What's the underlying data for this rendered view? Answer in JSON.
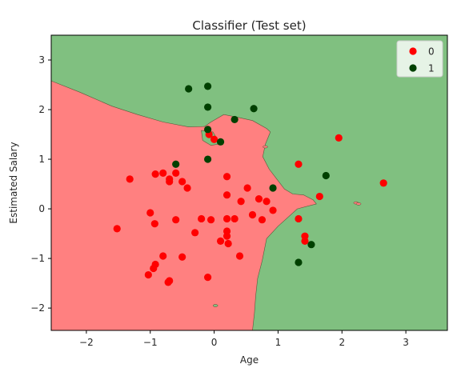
{
  "chart_data": {
    "type": "scatter",
    "title": "Classifier (Test set)",
    "xlabel": "Age",
    "ylabel": "Estimated Salary",
    "xlim": [
      -2.55,
      3.65
    ],
    "ylim": [
      -2.45,
      3.5
    ],
    "xticks": [
      -2,
      -1,
      0,
      1,
      2,
      3
    ],
    "yticks": [
      -2,
      -1,
      0,
      1,
      2,
      3
    ],
    "grid": false,
    "legend_position": "top-right",
    "regions": [
      {
        "class": "0",
        "color": "#ff8080"
      },
      {
        "class": "1",
        "color": "#80c080"
      }
    ],
    "boundary": [
      [
        -2.55,
        2.58
      ],
      [
        -2.1,
        2.35
      ],
      [
        -1.6,
        2.07
      ],
      [
        -1.2,
        1.9
      ],
      [
        -0.8,
        1.75
      ],
      [
        -0.4,
        1.65
      ],
      [
        -0.15,
        1.66
      ],
      [
        -0.05,
        1.75
      ],
      [
        0.15,
        1.9
      ],
      [
        0.35,
        1.85
      ],
      [
        0.6,
        1.78
      ],
      [
        0.82,
        1.62
      ],
      [
        0.88,
        1.55
      ],
      [
        0.8,
        1.3
      ],
      [
        0.76,
        1.05
      ],
      [
        0.86,
        0.8
      ],
      [
        0.98,
        0.6
      ],
      [
        1.1,
        0.4
      ],
      [
        1.23,
        0.3
      ],
      [
        1.4,
        0.28
      ],
      [
        1.55,
        0.18
      ],
      [
        1.6,
        0.1
      ],
      [
        1.3,
        0.0
      ],
      [
        1.0,
        -0.35
      ],
      [
        0.82,
        -0.6
      ],
      [
        0.75,
        -1.05
      ],
      [
        0.68,
        -1.4
      ],
      [
        0.65,
        -1.75
      ],
      [
        0.63,
        -2.1
      ],
      [
        0.6,
        -2.45
      ]
    ],
    "notch": [
      [
        -0.2,
        1.58
      ],
      [
        -0.02,
        1.55
      ],
      [
        0.05,
        1.4
      ],
      [
        0.05,
        1.3
      ],
      [
        -0.05,
        1.28
      ],
      [
        -0.18,
        1.38
      ]
    ],
    "series": [
      {
        "name": "0",
        "color": "#ff0000",
        "points": [
          [
            -1.52,
            -0.4
          ],
          [
            -1.32,
            0.6
          ],
          [
            -1.03,
            -1.33
          ],
          [
            -1.0,
            -0.08
          ],
          [
            -0.95,
            -1.2
          ],
          [
            -0.92,
            -1.12
          ],
          [
            -0.93,
            -0.3
          ],
          [
            -0.92,
            0.7
          ],
          [
            -0.8,
            0.72
          ],
          [
            -0.8,
            -0.95
          ],
          [
            -0.72,
            -1.48
          ],
          [
            -0.7,
            -1.45
          ],
          [
            -0.7,
            0.55
          ],
          [
            -0.7,
            0.6
          ],
          [
            -0.6,
            0.72
          ],
          [
            -0.6,
            -0.22
          ],
          [
            -0.5,
            -0.97
          ],
          [
            -0.5,
            0.55
          ],
          [
            -0.42,
            0.42
          ],
          [
            -0.3,
            -0.48
          ],
          [
            -0.2,
            -0.2
          ],
          [
            -0.1,
            -1.38
          ],
          [
            -0.08,
            1.5
          ],
          [
            -0.05,
            -0.22
          ],
          [
            0.0,
            1.4
          ],
          [
            0.1,
            -0.65
          ],
          [
            0.2,
            0.65
          ],
          [
            0.2,
            -0.2
          ],
          [
            0.2,
            0.28
          ],
          [
            0.2,
            -0.45
          ],
          [
            0.2,
            -0.55
          ],
          [
            0.22,
            -0.7
          ],
          [
            0.32,
            -0.2
          ],
          [
            0.4,
            -0.95
          ],
          [
            0.42,
            0.15
          ],
          [
            0.52,
            0.42
          ],
          [
            0.6,
            -0.12
          ],
          [
            0.7,
            0.2
          ],
          [
            0.75,
            -0.22
          ],
          [
            0.82,
            0.15
          ],
          [
            0.92,
            -0.03
          ],
          [
            1.32,
            0.9
          ],
          [
            1.32,
            -0.2
          ],
          [
            1.42,
            -0.55
          ],
          [
            1.42,
            -0.65
          ],
          [
            1.65,
            0.25
          ],
          [
            1.95,
            1.43
          ],
          [
            2.65,
            0.52
          ]
        ]
      },
      {
        "name": "1",
        "color": "#004000",
        "points": [
          [
            -0.6,
            0.9
          ],
          [
            -0.4,
            2.42
          ],
          [
            -0.1,
            2.47
          ],
          [
            -0.1,
            2.05
          ],
          [
            -0.1,
            1.6
          ],
          [
            -0.1,
            1.0
          ],
          [
            0.1,
            1.35
          ],
          [
            0.32,
            1.8
          ],
          [
            0.62,
            2.02
          ],
          [
            0.92,
            0.42
          ],
          [
            1.32,
            -1.08
          ],
          [
            1.52,
            -0.72
          ],
          [
            1.75,
            0.67
          ]
        ]
      }
    ],
    "stray_marks": [
      {
        "class": "0",
        "color": "#ff8080",
        "points": [
          [
            2.22,
            0.12
          ],
          [
            2.26,
            0.1
          ]
        ]
      },
      {
        "class": "1",
        "color": "#80c080",
        "points": [
          [
            0.02,
            -1.95
          ]
        ]
      },
      {
        "class": "0",
        "color": "#ff8080",
        "points": [
          [
            0.8,
            1.25
          ]
        ]
      }
    ]
  }
}
